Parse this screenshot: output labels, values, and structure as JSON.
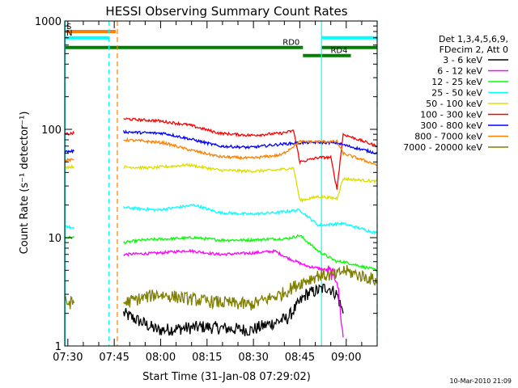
{
  "chart_data": {
    "type": "line",
    "title": "HESSI Observing Summary Count Rates",
    "xlabel": "Start Time (31-Jan-08 07:29:02)",
    "ylabel": "Count Rate (s⁻¹ detector⁻¹)",
    "y_scale": "log",
    "ylim": [
      1,
      1000
    ],
    "x_unit": "minutes after 07:29:02",
    "xlim": [
      0,
      101
    ],
    "x_ticks": [
      {
        "label": "07:30",
        "t": 1.0
      },
      {
        "label": "07:45",
        "t": 16.0
      },
      {
        "label": "08:00",
        "t": 31.0
      },
      {
        "label": "08:15",
        "t": 46.0
      },
      {
        "label": "08:30",
        "t": 61.0
      },
      {
        "label": "08:45",
        "t": 76.0
      },
      {
        "label": "09:00",
        "t": 91.0
      }
    ],
    "y_ticks": [
      {
        "label": "1",
        "v": 1
      },
      {
        "label": "10",
        "v": 10
      },
      {
        "label": "100",
        "v": 100
      },
      {
        "label": "1000",
        "v": 1000
      }
    ],
    "legend_header": [
      "Det 1,3,4,5,6,9,",
      "FDecim 2, Att 0"
    ],
    "legend_position": "right",
    "date_stamp": "10-Mar-2010 21:09",
    "series": [
      {
        "name": "3 - 6 keV",
        "color": "#000000",
        "points": [
          [
            19,
            2.0
          ],
          [
            30,
            1.4
          ],
          [
            45,
            1.5
          ],
          [
            60,
            1.4
          ],
          [
            72,
            1.8
          ],
          [
            78,
            3.0
          ],
          [
            85,
            3.5
          ],
          [
            88,
            3.0
          ],
          [
            90,
            2.0
          ]
        ]
      },
      {
        "name": "6 - 12 keV",
        "color": "#ff00ff",
        "points": [
          [
            19,
            7.0
          ],
          [
            30,
            7.2
          ],
          [
            40,
            7.6
          ],
          [
            50,
            7.0
          ],
          [
            60,
            7.2
          ],
          [
            68,
            7.5
          ],
          [
            72,
            6.5
          ],
          [
            78,
            5.5
          ],
          [
            85,
            5.0
          ],
          [
            88,
            4.2
          ],
          [
            90,
            1.2
          ]
        ]
      },
      {
        "name": "12 - 25 keV",
        "color": "#00ff00",
        "points": [
          [
            0,
            10.0
          ],
          [
            3,
            10.0
          ],
          [
            19,
            9.0
          ],
          [
            25,
            9.5
          ],
          [
            35,
            9.8
          ],
          [
            42,
            10.0
          ],
          [
            50,
            9.5
          ],
          [
            60,
            9.5
          ],
          [
            66,
            9.7
          ],
          [
            72,
            9.8
          ],
          [
            76,
            10.5
          ],
          [
            82,
            7.5
          ],
          [
            88,
            6.0
          ],
          [
            90,
            6.0
          ],
          [
            101,
            5.0
          ]
        ]
      },
      {
        "name": "25 - 50 keV",
        "color": "#00ffff",
        "points": [
          [
            0,
            13.0
          ],
          [
            3,
            12.0
          ],
          [
            19,
            19.0
          ],
          [
            30,
            18.0
          ],
          [
            42,
            20.0
          ],
          [
            50,
            17.0
          ],
          [
            60,
            16.5
          ],
          [
            68,
            17.0
          ],
          [
            72,
            17.5
          ],
          [
            76,
            18.0
          ],
          [
            82,
            13.0
          ],
          [
            90,
            13.5
          ],
          [
            101,
            11.0
          ]
        ]
      },
      {
        "name": "50 - 100 keV",
        "color": "#dddd00",
        "points": [
          [
            0,
            45.0
          ],
          [
            3,
            45.0
          ],
          [
            19,
            45.0
          ],
          [
            28,
            44.0
          ],
          [
            40,
            47.0
          ],
          [
            50,
            42.0
          ],
          [
            60,
            41.0
          ],
          [
            68,
            42.0
          ],
          [
            74,
            44.0
          ],
          [
            76,
            22.0
          ],
          [
            82,
            24.0
          ],
          [
            88,
            23.0
          ],
          [
            90,
            35.0
          ],
          [
            101,
            33.0
          ]
        ]
      },
      {
        "name": "100 - 300 keV",
        "color": "#ff0000",
        "points": [
          [
            0,
            90.0
          ],
          [
            3,
            92.0
          ],
          [
            19,
            125.0
          ],
          [
            25,
            122.0
          ],
          [
            30,
            120.0
          ],
          [
            40,
            110.0
          ],
          [
            50,
            92.0
          ],
          [
            60,
            88.0
          ],
          [
            70,
            92.0
          ],
          [
            74,
            97.0
          ],
          [
            76,
            50.0
          ],
          [
            82,
            55.0
          ],
          [
            86,
            55.0
          ],
          [
            88,
            28.0
          ],
          [
            90,
            90.0
          ],
          [
            101,
            70.0
          ]
        ]
      },
      {
        "name": "300 - 800 keV",
        "color": "#0000ff",
        "points": [
          [
            0,
            62.0
          ],
          [
            3,
            63.0
          ],
          [
            19,
            95.0
          ],
          [
            25,
            93.0
          ],
          [
            32,
            92.0
          ],
          [
            40,
            82.0
          ],
          [
            50,
            70.0
          ],
          [
            60,
            68.0
          ],
          [
            70,
            73.0
          ],
          [
            76,
            75.0
          ],
          [
            82,
            76.0
          ],
          [
            88,
            75.0
          ],
          [
            90,
            72.0
          ],
          [
            101,
            60.0
          ]
        ]
      },
      {
        "name": "800 - 7000 keV",
        "color": "#ff8000",
        "points": [
          [
            0,
            52.0
          ],
          [
            3,
            52.0
          ],
          [
            19,
            80.0
          ],
          [
            25,
            78.0
          ],
          [
            32,
            75.0
          ],
          [
            40,
            65.0
          ],
          [
            50,
            56.0
          ],
          [
            60,
            54.0
          ],
          [
            70,
            58.0
          ],
          [
            76,
            77.0
          ],
          [
            88,
            77.0
          ],
          [
            90,
            60.0
          ],
          [
            101,
            47.0
          ]
        ]
      },
      {
        "name": "7000 - 20000 keV",
        "color": "#808000",
        "points": [
          [
            0,
            2.5
          ],
          [
            3,
            2.5
          ],
          [
            19,
            2.5
          ],
          [
            30,
            3.0
          ],
          [
            45,
            2.6
          ],
          [
            60,
            2.4
          ],
          [
            70,
            3.0
          ],
          [
            76,
            3.8
          ],
          [
            82,
            4.5
          ],
          [
            88,
            4.5
          ],
          [
            90,
            5.0
          ],
          [
            101,
            4.0
          ]
        ]
      }
    ],
    "flag_bars": [
      {
        "label": "S",
        "color": "#ff8000",
        "start": 0.0,
        "end": 16.5,
        "level": 800
      },
      {
        "label": "N",
        "color": "#00ffff",
        "start": 0.0,
        "end": 14.5,
        "level": 700
      },
      {
        "label": "",
        "color": "#00ffff",
        "start": 83.0,
        "end": 101.0,
        "level": 700
      },
      {
        "label": "RD0",
        "color": "#008000",
        "start": 0.0,
        "end": 77.0,
        "level": 570
      },
      {
        "label": "",
        "color": "#008000",
        "start": 83.0,
        "end": 101.0,
        "level": 570
      },
      {
        "label": "RD4",
        "color": "#008000",
        "start": 77.0,
        "end": 92.5,
        "level": 480
      }
    ],
    "vertical_markers": [
      {
        "t": 0.1,
        "color": "#00ffff",
        "style": "solid"
      },
      {
        "t": 14.3,
        "color": "#00ffff",
        "style": "dashed"
      },
      {
        "t": 17.0,
        "color": "#ff8000",
        "style": "dashed"
      },
      {
        "t": 83.0,
        "color": "#00ffff",
        "style": "solid"
      },
      {
        "t": 101.0,
        "color": "#00ffff",
        "style": "dashed"
      }
    ]
  }
}
